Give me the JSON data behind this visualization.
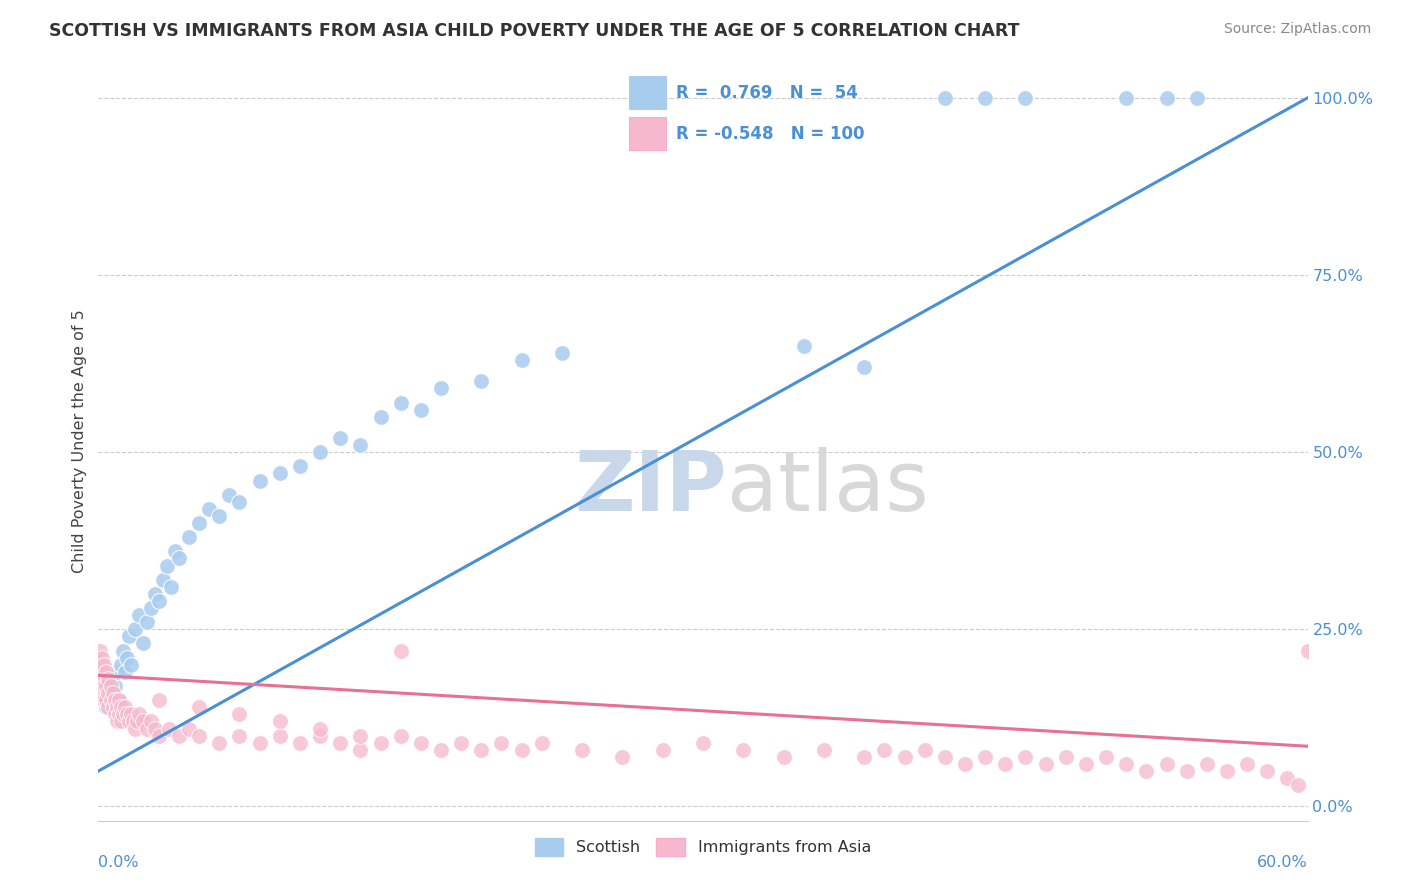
{
  "title": "SCOTTISH VS IMMIGRANTS FROM ASIA CHILD POVERTY UNDER THE AGE OF 5 CORRELATION CHART",
  "source": "Source: ZipAtlas.com",
  "ylabel": "Child Poverty Under the Age of 5",
  "r_scottish": 0.769,
  "n_scottish": 54,
  "r_asian": -0.548,
  "n_asian": 100,
  "blue_color": "#a8ccee",
  "pink_color": "#f5b8cc",
  "blue_line_color": "#4a90d4",
  "pink_line_color": "#e87090",
  "legend_text_color": "#4a90d4",
  "watermark_color": "#d0dff0",
  "ytick_labels": [
    "0.0%",
    "25.0%",
    "50.0%",
    "75.0%",
    "100.0%"
  ],
  "ytick_values": [
    0,
    0.25,
    0.5,
    0.75,
    1.0
  ],
  "xlim": [
    0,
    0.6
  ],
  "ylim": [
    -0.02,
    1.05
  ],
  "blue_line_y0": 0.05,
  "blue_line_y1": 1.0,
  "pink_line_y0": 0.185,
  "pink_line_y1": 0.085,
  "scottish_x": [
    0.002,
    0.003,
    0.004,
    0.005,
    0.006,
    0.007,
    0.008,
    0.009,
    0.01,
    0.011,
    0.012,
    0.013,
    0.014,
    0.015,
    0.016,
    0.018,
    0.02,
    0.022,
    0.024,
    0.026,
    0.028,
    0.03,
    0.032,
    0.034,
    0.036,
    0.038,
    0.04,
    0.045,
    0.05,
    0.055,
    0.06,
    0.065,
    0.07,
    0.08,
    0.09,
    0.1,
    0.11,
    0.12,
    0.13,
    0.14,
    0.15,
    0.16,
    0.17,
    0.19,
    0.21,
    0.23,
    0.35,
    0.38,
    0.42,
    0.44,
    0.46,
    0.51,
    0.53,
    0.545
  ],
  "scottish_y": [
    0.16,
    0.17,
    0.14,
    0.15,
    0.18,
    0.16,
    0.17,
    0.19,
    0.15,
    0.2,
    0.22,
    0.19,
    0.21,
    0.24,
    0.2,
    0.25,
    0.27,
    0.23,
    0.26,
    0.28,
    0.3,
    0.29,
    0.32,
    0.34,
    0.31,
    0.36,
    0.35,
    0.38,
    0.4,
    0.42,
    0.41,
    0.44,
    0.43,
    0.46,
    0.47,
    0.48,
    0.5,
    0.52,
    0.51,
    0.55,
    0.57,
    0.56,
    0.59,
    0.6,
    0.63,
    0.64,
    0.65,
    0.62,
    1.0,
    1.0,
    1.0,
    1.0,
    1.0,
    1.0
  ],
  "asian_x": [
    0.001,
    0.001,
    0.001,
    0.002,
    0.002,
    0.002,
    0.003,
    0.003,
    0.003,
    0.004,
    0.004,
    0.004,
    0.005,
    0.005,
    0.005,
    0.006,
    0.006,
    0.007,
    0.007,
    0.008,
    0.008,
    0.009,
    0.009,
    0.01,
    0.01,
    0.011,
    0.011,
    0.012,
    0.013,
    0.014,
    0.015,
    0.016,
    0.017,
    0.018,
    0.019,
    0.02,
    0.022,
    0.024,
    0.026,
    0.028,
    0.03,
    0.035,
    0.04,
    0.045,
    0.05,
    0.06,
    0.07,
    0.08,
    0.09,
    0.1,
    0.11,
    0.12,
    0.13,
    0.14,
    0.15,
    0.16,
    0.17,
    0.18,
    0.19,
    0.2,
    0.21,
    0.22,
    0.24,
    0.26,
    0.28,
    0.3,
    0.32,
    0.34,
    0.36,
    0.38,
    0.39,
    0.4,
    0.41,
    0.42,
    0.43,
    0.44,
    0.45,
    0.46,
    0.47,
    0.48,
    0.49,
    0.5,
    0.51,
    0.52,
    0.53,
    0.54,
    0.55,
    0.56,
    0.57,
    0.58,
    0.59,
    0.595,
    0.03,
    0.05,
    0.07,
    0.09,
    0.11,
    0.13,
    0.15,
    0.6
  ],
  "asian_y": [
    0.22,
    0.19,
    0.17,
    0.21,
    0.18,
    0.16,
    0.2,
    0.17,
    0.15,
    0.19,
    0.17,
    0.15,
    0.18,
    0.16,
    0.14,
    0.17,
    0.15,
    0.16,
    0.14,
    0.15,
    0.13,
    0.14,
    0.12,
    0.15,
    0.13,
    0.14,
    0.12,
    0.13,
    0.14,
    0.13,
    0.12,
    0.13,
    0.12,
    0.11,
    0.12,
    0.13,
    0.12,
    0.11,
    0.12,
    0.11,
    0.1,
    0.11,
    0.1,
    0.11,
    0.1,
    0.09,
    0.1,
    0.09,
    0.1,
    0.09,
    0.1,
    0.09,
    0.08,
    0.09,
    0.1,
    0.09,
    0.08,
    0.09,
    0.08,
    0.09,
    0.08,
    0.09,
    0.08,
    0.07,
    0.08,
    0.09,
    0.08,
    0.07,
    0.08,
    0.07,
    0.08,
    0.07,
    0.08,
    0.07,
    0.06,
    0.07,
    0.06,
    0.07,
    0.06,
    0.07,
    0.06,
    0.07,
    0.06,
    0.05,
    0.06,
    0.05,
    0.06,
    0.05,
    0.06,
    0.05,
    0.04,
    0.03,
    0.15,
    0.14,
    0.13,
    0.12,
    0.11,
    0.1,
    0.22,
    0.22
  ]
}
